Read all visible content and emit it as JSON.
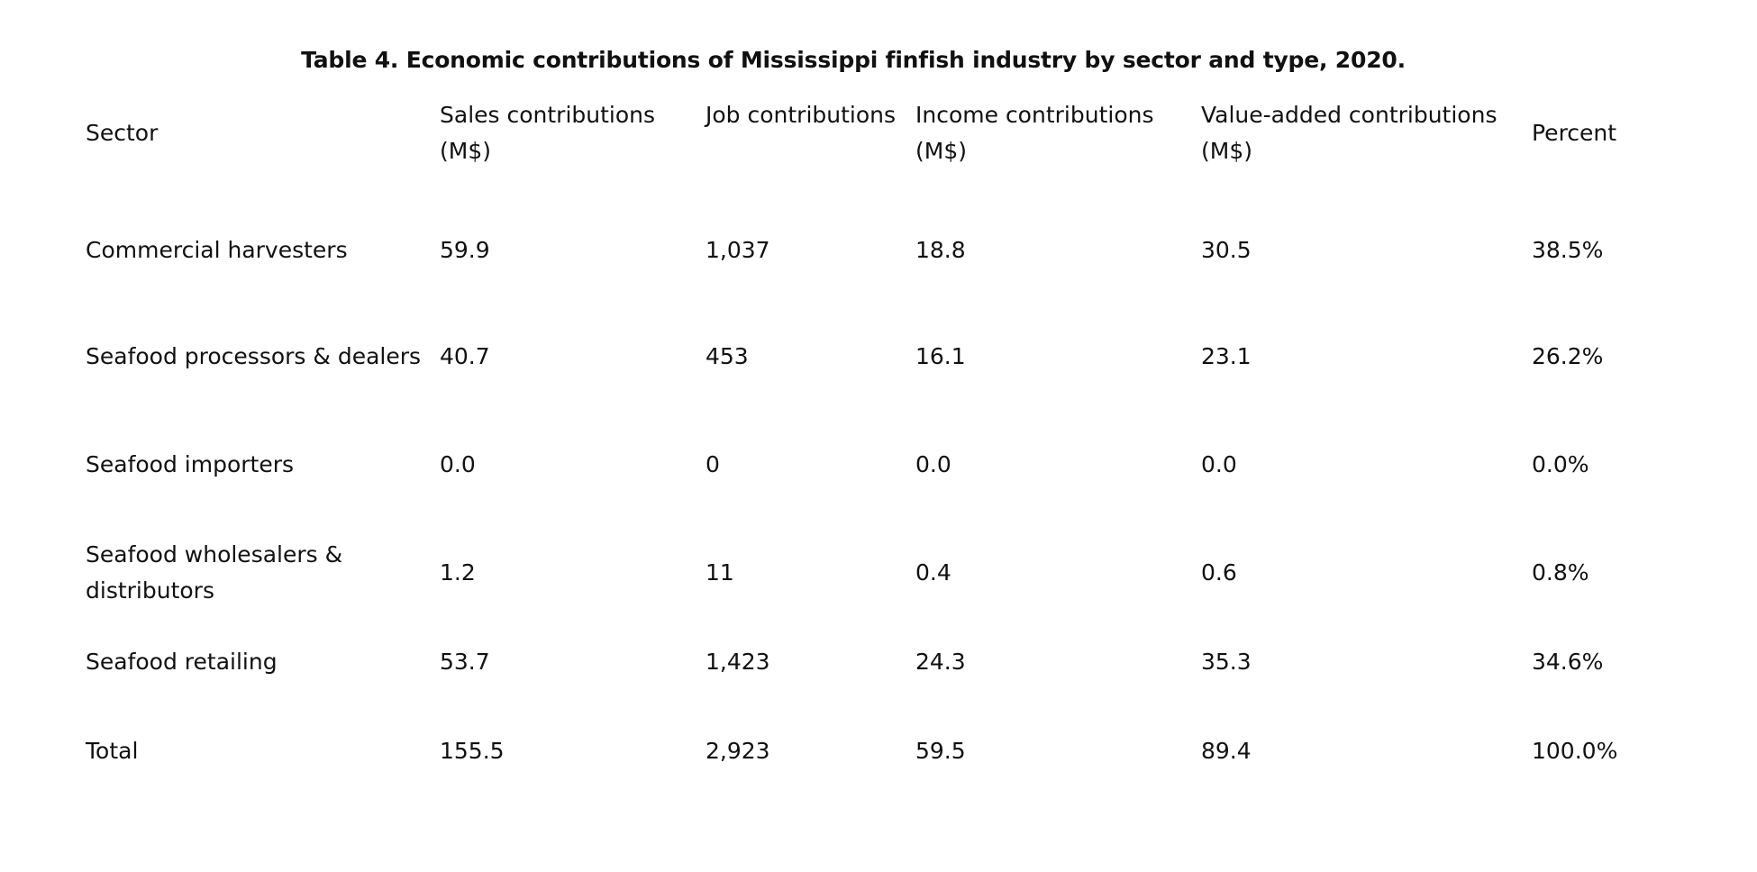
{
  "caption": "Table 4. Economic contributions of Mississippi finfish industry by sector and type, 2020.",
  "table": {
    "headers": {
      "sector": "Sector",
      "sales": "Sales contributions (M$)",
      "jobs": "Job contributions",
      "income": "Income contributions (M$)",
      "value_added": "Value-added contributions (M$)",
      "percent": "Percent"
    },
    "rows": [
      {
        "sector": "Commercial harvesters",
        "sales": "59.9",
        "jobs": "1,037",
        "income": "18.8",
        "value_added": "30.5",
        "percent": "38.5%"
      },
      {
        "sector": "Seafood processors & dealers",
        "sales": "40.7",
        "jobs": "453",
        "income": "16.1",
        "value_added": "23.1",
        "percent": "26.2%"
      },
      {
        "sector": "Seafood importers",
        "sales": "0.0",
        "jobs": "0",
        "income": "0.0",
        "value_added": "0.0",
        "percent": "0.0%"
      },
      {
        "sector": "Seafood wholesalers & distributors",
        "sales": "1.2",
        "jobs": "11",
        "income": "0.4",
        "value_added": "0.6",
        "percent": "0.8%"
      },
      {
        "sector": "Seafood retailing",
        "sales": "53.7",
        "jobs": "1,423",
        "income": "24.3",
        "value_added": "35.3",
        "percent": "34.6%"
      },
      {
        "sector": "Total",
        "sales": "155.5",
        "jobs": "2,923",
        "income": "59.5",
        "value_added": "89.4",
        "percent": "100.0%"
      }
    ]
  }
}
